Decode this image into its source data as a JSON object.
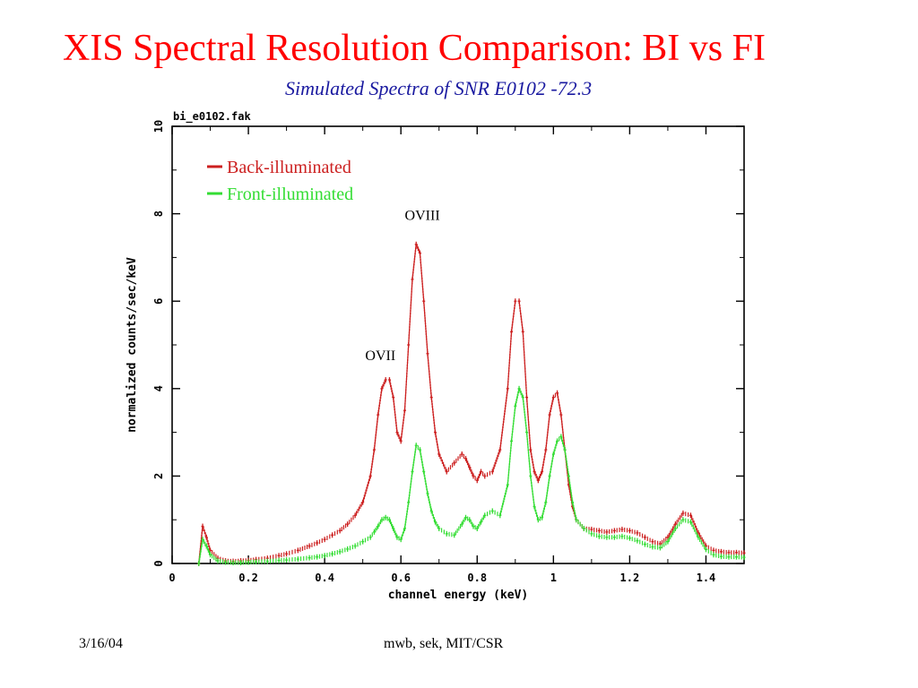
{
  "slide": {
    "title": "XIS Spectral Resolution Comparison: BI vs FI",
    "subtitle": "Simulated Spectra of SNR E0102 -72.3",
    "footer_date": "3/16/04",
    "footer_author": "mwb, sek, MIT/CSR"
  },
  "colors": {
    "title": "#ff0000",
    "subtitle": "#1a1aa0",
    "series_bi": "#cc1f1f",
    "series_fi": "#33dd33"
  },
  "chart_data": {
    "type": "scatter",
    "title": "bi_e0102.fak",
    "xlabel": "channel energy (keV)",
    "ylabel": "normalized counts/sec/keV",
    "xlim": [
      0,
      1.5
    ],
    "ylim": [
      0,
      10
    ],
    "x_ticks": [
      0,
      0.2,
      0.4,
      0.6,
      0.8,
      1,
      1.2,
      1.4
    ],
    "x_tick_labels": [
      "0",
      "0.2",
      "0.4",
      "0.6",
      "0.8",
      "1",
      "1.2",
      "1.4"
    ],
    "y_ticks": [
      0,
      2,
      4,
      6,
      8,
      10
    ],
    "y_tick_labels": [
      "0",
      "2",
      "4",
      "6",
      "8",
      "10"
    ],
    "legend_placement": "top-left",
    "annotations": [
      {
        "text": "OVII",
        "x": 0.565,
        "y": 4.45
      },
      {
        "text": "OVIII",
        "x": 0.675,
        "y": 7.65
      }
    ],
    "series": [
      {
        "name": "Back-illuminated",
        "color": "#cc1f1f",
        "x": [
          0.07,
          0.08,
          0.09,
          0.1,
          0.12,
          0.14,
          0.16,
          0.18,
          0.2,
          0.22,
          0.25,
          0.28,
          0.3,
          0.33,
          0.36,
          0.38,
          0.4,
          0.42,
          0.44,
          0.46,
          0.48,
          0.5,
          0.52,
          0.53,
          0.54,
          0.55,
          0.56,
          0.57,
          0.58,
          0.59,
          0.6,
          0.61,
          0.62,
          0.63,
          0.64,
          0.65,
          0.66,
          0.67,
          0.68,
          0.69,
          0.7,
          0.72,
          0.74,
          0.76,
          0.77,
          0.78,
          0.79,
          0.8,
          0.81,
          0.82,
          0.84,
          0.86,
          0.88,
          0.89,
          0.9,
          0.91,
          0.92,
          0.93,
          0.94,
          0.95,
          0.96,
          0.97,
          0.98,
          0.99,
          1.0,
          1.01,
          1.02,
          1.03,
          1.04,
          1.05,
          1.06,
          1.08,
          1.1,
          1.12,
          1.14,
          1.16,
          1.18,
          1.2,
          1.22,
          1.24,
          1.26,
          1.28,
          1.3,
          1.32,
          1.34,
          1.36,
          1.38,
          1.4,
          1.42,
          1.44,
          1.46,
          1.48,
          1.5
        ],
        "y": [
          0,
          0.85,
          0.6,
          0.3,
          0.12,
          0.06,
          0.05,
          0.06,
          0.07,
          0.09,
          0.12,
          0.18,
          0.22,
          0.3,
          0.4,
          0.47,
          0.55,
          0.65,
          0.75,
          0.9,
          1.1,
          1.4,
          2.0,
          2.6,
          3.4,
          4.0,
          4.2,
          4.2,
          3.8,
          3.0,
          2.8,
          3.5,
          5.0,
          6.5,
          7.3,
          7.1,
          6.0,
          4.8,
          3.8,
          3.0,
          2.5,
          2.1,
          2.3,
          2.5,
          2.4,
          2.2,
          2.0,
          1.9,
          2.1,
          2.0,
          2.1,
          2.6,
          4.0,
          5.3,
          6.0,
          6.0,
          5.3,
          3.8,
          2.6,
          2.1,
          1.9,
          2.1,
          2.6,
          3.4,
          3.8,
          3.9,
          3.4,
          2.6,
          1.8,
          1.3,
          1.0,
          0.8,
          0.78,
          0.75,
          0.72,
          0.75,
          0.78,
          0.75,
          0.7,
          0.6,
          0.5,
          0.45,
          0.6,
          0.9,
          1.15,
          1.1,
          0.7,
          0.4,
          0.3,
          0.27,
          0.25,
          0.25,
          0.24
        ]
      },
      {
        "name": "Front-illuminated",
        "color": "#33dd33",
        "x": [
          0.07,
          0.08,
          0.09,
          0.1,
          0.12,
          0.14,
          0.16,
          0.18,
          0.2,
          0.22,
          0.25,
          0.28,
          0.3,
          0.33,
          0.36,
          0.38,
          0.4,
          0.42,
          0.44,
          0.46,
          0.48,
          0.5,
          0.52,
          0.53,
          0.54,
          0.55,
          0.56,
          0.57,
          0.58,
          0.59,
          0.6,
          0.61,
          0.62,
          0.63,
          0.64,
          0.65,
          0.66,
          0.67,
          0.68,
          0.69,
          0.7,
          0.72,
          0.74,
          0.76,
          0.77,
          0.78,
          0.79,
          0.8,
          0.81,
          0.82,
          0.84,
          0.86,
          0.88,
          0.89,
          0.9,
          0.91,
          0.92,
          0.93,
          0.94,
          0.95,
          0.96,
          0.97,
          0.98,
          0.99,
          1.0,
          1.01,
          1.02,
          1.03,
          1.04,
          1.05,
          1.06,
          1.08,
          1.1,
          1.12,
          1.14,
          1.16,
          1.18,
          1.2,
          1.22,
          1.24,
          1.26,
          1.28,
          1.3,
          1.32,
          1.34,
          1.36,
          1.38,
          1.4,
          1.42,
          1.44,
          1.46,
          1.48,
          1.5
        ],
        "y": [
          0,
          0.55,
          0.4,
          0.2,
          0.06,
          0.03,
          0.02,
          0.02,
          0.03,
          0.04,
          0.05,
          0.07,
          0.08,
          0.1,
          0.13,
          0.15,
          0.18,
          0.22,
          0.27,
          0.33,
          0.4,
          0.5,
          0.6,
          0.72,
          0.85,
          1.0,
          1.05,
          1.0,
          0.8,
          0.6,
          0.55,
          0.8,
          1.4,
          2.1,
          2.7,
          2.6,
          2.1,
          1.6,
          1.2,
          0.95,
          0.8,
          0.68,
          0.65,
          0.9,
          1.05,
          1.0,
          0.85,
          0.8,
          0.95,
          1.1,
          1.2,
          1.1,
          1.8,
          2.8,
          3.6,
          4.0,
          3.8,
          3.0,
          2.0,
          1.3,
          1.0,
          1.05,
          1.4,
          2.0,
          2.5,
          2.8,
          2.9,
          2.6,
          2.0,
          1.4,
          1.0,
          0.8,
          0.68,
          0.62,
          0.6,
          0.6,
          0.62,
          0.58,
          0.52,
          0.44,
          0.38,
          0.36,
          0.5,
          0.8,
          1.0,
          0.95,
          0.6,
          0.32,
          0.2,
          0.16,
          0.15,
          0.15,
          0.14
        ]
      }
    ]
  }
}
